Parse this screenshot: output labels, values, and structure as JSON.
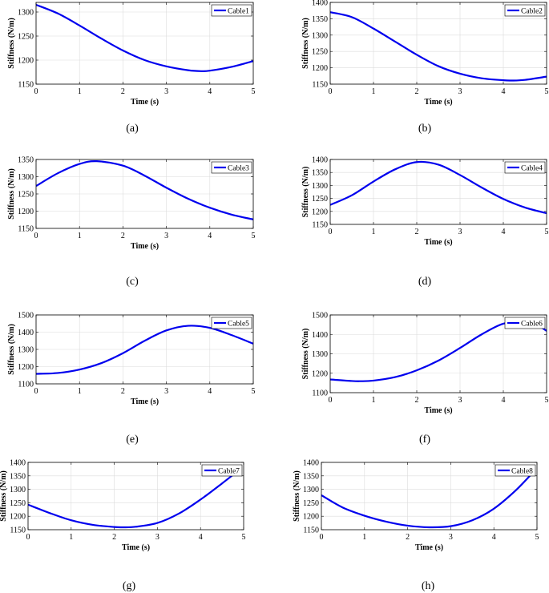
{
  "chart_data": [
    {
      "type": "line",
      "caption": "(a)",
      "xlabel": "Time (s)",
      "ylabel": "Stiffness (N/m)",
      "xlim": [
        0,
        5
      ],
      "ylim": [
        1150,
        1320
      ],
      "xticks": [
        0,
        1,
        2,
        3,
        4,
        5
      ],
      "yticks": [
        1150,
        1200,
        1250,
        1300
      ],
      "grid": true,
      "legend_position": "top-right",
      "series": [
        {
          "name": "Cable1",
          "color": "#0000ee",
          "x": [
            0,
            0.5,
            1,
            1.5,
            2,
            2.5,
            3,
            3.5,
            3.8,
            4,
            4.5,
            5
          ],
          "y": [
            1315,
            1297,
            1272,
            1245,
            1220,
            1200,
            1187,
            1179,
            1177,
            1178,
            1186,
            1198
          ]
        }
      ]
    },
    {
      "type": "line",
      "caption": "(b)",
      "xlabel": "Time (s)",
      "ylabel": "Stiffness (N/m)",
      "xlim": [
        0,
        5
      ],
      "ylim": [
        1150,
        1400
      ],
      "xticks": [
        0,
        1,
        2,
        3,
        4,
        5
      ],
      "yticks": [
        1150,
        1200,
        1250,
        1300,
        1350,
        1400
      ],
      "grid": true,
      "legend_position": "top-right",
      "series": [
        {
          "name": "Cable2",
          "color": "#0000ee",
          "x": [
            0,
            0.5,
            1,
            1.5,
            2,
            2.5,
            3,
            3.5,
            4,
            4.2,
            4.5,
            5
          ],
          "y": [
            1370,
            1355,
            1320,
            1280,
            1240,
            1205,
            1182,
            1168,
            1162,
            1161,
            1163,
            1173
          ]
        }
      ]
    },
    {
      "type": "line",
      "caption": "(c)",
      "xlabel": "Time (s)",
      "ylabel": "Stiffness (N/m)",
      "xlim": [
        0,
        5
      ],
      "ylim": [
        1150,
        1350
      ],
      "xticks": [
        0,
        1,
        2,
        3,
        4,
        5
      ],
      "yticks": [
        1150,
        1200,
        1250,
        1300,
        1350
      ],
      "grid": true,
      "legend_position": "top-right",
      "series": [
        {
          "name": "Cable3",
          "color": "#0000ee",
          "x": [
            0,
            0.5,
            1,
            1.4,
            2,
            2.5,
            3,
            3.5,
            4,
            4.5,
            5
          ],
          "y": [
            1273,
            1310,
            1337,
            1345,
            1332,
            1303,
            1268,
            1236,
            1210,
            1190,
            1176
          ]
        }
      ]
    },
    {
      "type": "line",
      "caption": "(d)",
      "xlabel": "Time (s)",
      "ylabel": "Stiffness (N/m)",
      "xlim": [
        0,
        5
      ],
      "ylim": [
        1150,
        1400
      ],
      "xticks": [
        0,
        1,
        2,
        3,
        4,
        5
      ],
      "yticks": [
        1150,
        1200,
        1250,
        1300,
        1350,
        1400
      ],
      "grid": true,
      "legend_position": "top-right",
      "series": [
        {
          "name": "Cable4",
          "color": "#0000ee",
          "x": [
            0,
            0.5,
            1,
            1.5,
            2,
            2.5,
            3,
            3.5,
            4,
            4.5,
            5
          ],
          "y": [
            1225,
            1262,
            1315,
            1362,
            1390,
            1380,
            1340,
            1292,
            1248,
            1215,
            1193
          ]
        }
      ]
    },
    {
      "type": "line",
      "caption": "(e)",
      "xlabel": "Time (s)",
      "ylabel": "Stiffness (N/m)",
      "xlim": [
        0,
        5
      ],
      "ylim": [
        1100,
        1500
      ],
      "xticks": [
        0,
        1,
        2,
        3,
        4,
        5
      ],
      "yticks": [
        1100,
        1200,
        1300,
        1400,
        1500
      ],
      "grid": true,
      "legend_position": "top-right",
      "series": [
        {
          "name": "Cable5",
          "color": "#0000ee",
          "x": [
            0,
            0.5,
            1,
            1.5,
            2,
            2.5,
            3,
            3.5,
            4,
            4.5,
            5
          ],
          "y": [
            1158,
            1163,
            1183,
            1220,
            1278,
            1350,
            1410,
            1437,
            1425,
            1383,
            1333
          ]
        }
      ]
    },
    {
      "type": "line",
      "caption": "(f)",
      "xlabel": "Time (s)",
      "ylabel": "Stiffness (N/m)",
      "xlim": [
        0,
        5
      ],
      "ylim": [
        1100,
        1500
      ],
      "xticks": [
        0,
        1,
        2,
        3,
        4,
        5
      ],
      "yticks": [
        1100,
        1200,
        1300,
        1400,
        1500
      ],
      "grid": true,
      "legend_position": "top-right",
      "series": [
        {
          "name": "Cable6",
          "color": "#0000ee",
          "x": [
            0,
            0.5,
            0.7,
            1,
            1.5,
            2,
            2.5,
            3,
            3.5,
            4,
            4.5,
            4.8,
            5
          ],
          "y": [
            1168,
            1160,
            1159,
            1162,
            1180,
            1215,
            1265,
            1330,
            1400,
            1455,
            1465,
            1445,
            1418
          ]
        }
      ]
    },
    {
      "type": "line",
      "caption": "(g)",
      "xlabel": "Time (s)",
      "ylabel": "Stiffness (N/m)",
      "xlim": [
        0,
        5
      ],
      "ylim": [
        1150,
        1400
      ],
      "xticks": [
        0,
        1,
        2,
        3,
        4,
        5
      ],
      "yticks": [
        1150,
        1200,
        1250,
        1300,
        1350,
        1400
      ],
      "grid": true,
      "legend_position": "top-right",
      "series": [
        {
          "name": "Cable7",
          "color": "#0000ee",
          "x": [
            0,
            0.5,
            1,
            1.5,
            2,
            2.2,
            2.5,
            3,
            3.5,
            4,
            4.5,
            4.9
          ],
          "y": [
            1243,
            1212,
            1185,
            1168,
            1160,
            1159,
            1161,
            1175,
            1210,
            1262,
            1322,
            1372
          ]
        }
      ]
    },
    {
      "type": "line",
      "caption": "(h)",
      "xlabel": "Time (s)",
      "ylabel": "Stiffness (N/m)",
      "xlim": [
        0,
        5
      ],
      "ylim": [
        1150,
        1400
      ],
      "xticks": [
        0,
        1,
        2,
        3,
        4,
        5
      ],
      "yticks": [
        1150,
        1200,
        1250,
        1300,
        1350,
        1400
      ],
      "grid": true,
      "legend_position": "top-right",
      "series": [
        {
          "name": "Cable8",
          "color": "#0000ee",
          "x": [
            0,
            0.5,
            1,
            1.5,
            2,
            2.5,
            3,
            3.5,
            4,
            4.5,
            4.95
          ],
          "y": [
            1278,
            1232,
            1202,
            1180,
            1165,
            1159,
            1163,
            1185,
            1228,
            1295,
            1370
          ]
        }
      ]
    }
  ]
}
